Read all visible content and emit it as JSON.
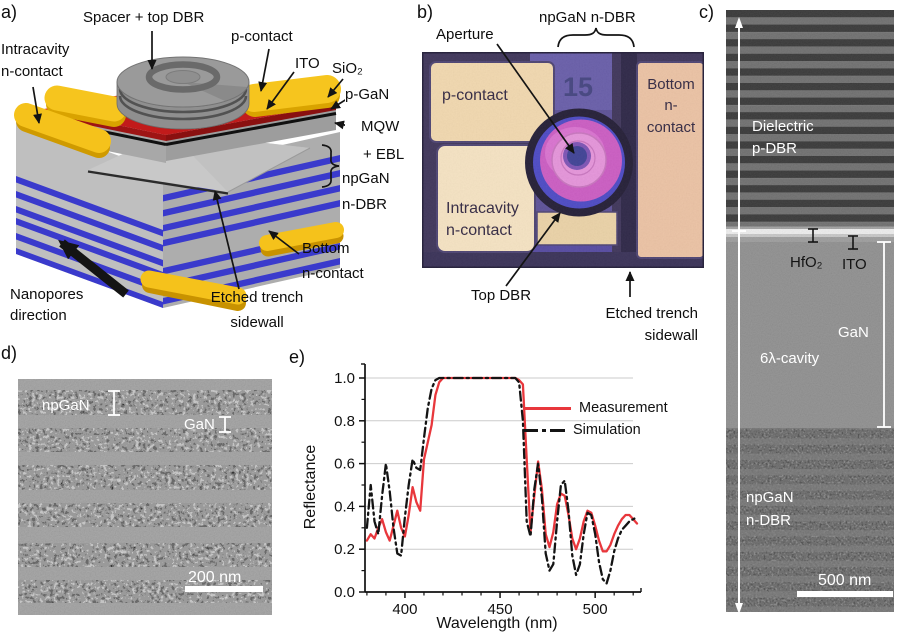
{
  "figure": {
    "colors": {
      "contact_yellow": "#f5c21b",
      "dbr_stripe_blue": "#3a3acc",
      "p_gan_red": "#c11b1b",
      "ito_blue": "#5c5cdc",
      "photo_magenta": "#cb5ac2",
      "aperture_blue": "#3c3f94",
      "measurement_red": "#e8373c",
      "simulation_black": "#141414"
    },
    "panels": {
      "a": {
        "tag": "a)",
        "labels": {
          "spacer": "Spacer + top DBR",
          "p_contact": "p-contact",
          "ito": "ITO",
          "sio2": "SiO₂",
          "p_gan": "p-GaN",
          "mqw_l1": "MQW",
          "mqw_l2": "+ EBL",
          "npgan_l1": "npGaN",
          "npgan_l2": "n-DBR",
          "bottom_l1": "Bottom",
          "bottom_l2": "n-contact",
          "trench_l1": "Etched trench",
          "trench_l2": "sidewall",
          "nano_l1": "Nanopores",
          "nano_l2": "direction",
          "intra_l1": "Intracavity",
          "intra_l2": "n-contact"
        }
      },
      "b": {
        "tag": "b)",
        "labels": {
          "aperture": "Aperture",
          "npgan_ndbr": "npGaN n-DBR",
          "top_dbr": "Top DBR",
          "trench_l1": "Etched trench",
          "trench_l2": "sidewall"
        },
        "photo": {
          "p_contact": "p-contact",
          "device_number": "15",
          "bottom_l1": "Bottom",
          "bottom_l2": "n-",
          "bottom_l3": "contact",
          "intra_l1": "Intracavity",
          "intra_l2": "n-contact"
        }
      },
      "c": {
        "tag": "c)",
        "photo": {
          "dbr_l1": "Dielectric",
          "dbr_l2": "p-DBR",
          "hfo2": "HfO₂",
          "ito": "ITO",
          "gan": "GaN",
          "cavity": "6λ-cavity",
          "npgan_l1": "npGaN",
          "npgan_l2": "n-DBR",
          "scale_bar": "500 nm"
        }
      },
      "d": {
        "tag": "d)",
        "photo": {
          "npgan": "npGaN",
          "gan": "GaN",
          "scale_bar": "200 nm"
        }
      },
      "e": {
        "tag": "e)"
      }
    }
  },
  "chart_data": {
    "type": "line",
    "title": "",
    "xlabel": "Wavelength (nm)",
    "ylabel": "Reflectance",
    "xlim": [
      379,
      522
    ],
    "ylim": [
      0,
      1.0
    ],
    "xticks": [
      400,
      450,
      500
    ],
    "yticks": [
      0,
      0.2,
      0.4,
      0.6,
      0.8,
      1.0
    ],
    "x_minor_step": 10,
    "y_minor_step": 0.1,
    "grid": "horizontal",
    "legend_position": "top-right",
    "x": [
      380,
      382,
      384,
      386,
      388,
      390,
      392,
      394,
      396,
      398,
      400,
      402,
      404,
      406,
      408,
      410,
      412,
      414,
      416,
      418,
      420,
      422,
      424,
      426,
      428,
      430,
      432,
      434,
      436,
      438,
      440,
      442,
      444,
      446,
      448,
      450,
      452,
      454,
      456,
      458,
      460,
      462,
      464,
      466,
      468,
      470,
      472,
      474,
      476,
      478,
      480,
      482,
      484,
      486,
      488,
      490,
      492,
      494,
      496,
      498,
      500,
      502,
      504,
      506,
      508,
      510,
      512,
      514,
      516,
      518,
      520,
      522
    ],
    "series": [
      {
        "name": "Measurement",
        "color": "#e8373c",
        "style": "solid",
        "values": [
          0.24,
          0.27,
          0.25,
          0.3,
          0.34,
          0.28,
          0.24,
          0.31,
          0.38,
          0.3,
          0.26,
          0.36,
          0.49,
          0.42,
          0.38,
          0.62,
          0.7,
          0.78,
          0.92,
          0.98,
          1.0,
          1.0,
          1.0,
          1.0,
          1.0,
          1.0,
          1.0,
          1.0,
          1.0,
          1.0,
          1.0,
          1.0,
          1.0,
          1.0,
          1.0,
          1.0,
          1.0,
          1.0,
          1.0,
          1.0,
          0.99,
          0.97,
          0.62,
          0.28,
          0.45,
          0.61,
          0.48,
          0.27,
          0.21,
          0.28,
          0.41,
          0.46,
          0.45,
          0.36,
          0.25,
          0.2,
          0.25,
          0.33,
          0.38,
          0.37,
          0.31,
          0.24,
          0.19,
          0.19,
          0.22,
          0.27,
          0.31,
          0.34,
          0.36,
          0.36,
          0.34,
          0.32
        ]
      },
      {
        "name": "Simulation",
        "color": "#141414",
        "style": "dash-dot",
        "values": [
          0.3,
          0.5,
          0.33,
          0.27,
          0.45,
          0.6,
          0.47,
          0.3,
          0.18,
          0.17,
          0.35,
          0.5,
          0.62,
          0.58,
          0.57,
          0.72,
          0.86,
          0.95,
          0.99,
          1.0,
          1.0,
          1.0,
          1.0,
          1.0,
          1.0,
          1.0,
          1.0,
          1.0,
          1.0,
          1.0,
          1.0,
          1.0,
          1.0,
          1.0,
          1.0,
          1.0,
          1.0,
          1.0,
          1.0,
          1.0,
          0.98,
          0.8,
          0.33,
          0.26,
          0.48,
          0.6,
          0.44,
          0.18,
          0.1,
          0.13,
          0.33,
          0.5,
          0.52,
          0.38,
          0.17,
          0.08,
          0.13,
          0.27,
          0.37,
          0.36,
          0.27,
          0.14,
          0.06,
          0.04,
          0.1,
          0.19,
          0.25,
          0.29,
          0.31,
          0.33,
          0.34,
          0.35
        ]
      }
    ]
  }
}
